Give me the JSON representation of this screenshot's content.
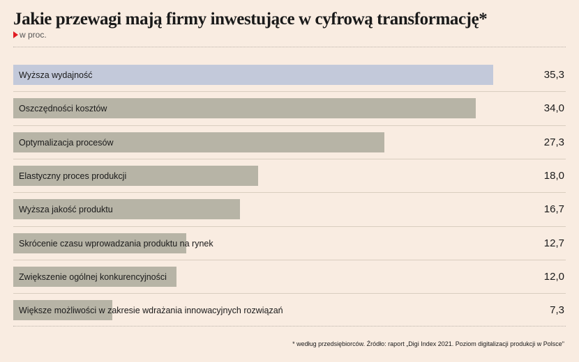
{
  "header": {
    "title": "Jakie przewagi mają firmy inwestujące w cyfrową transformację*",
    "subtitle": "w proc."
  },
  "footnote": "* według przedsiębiorców. Źródło: raport „Digi Index 2021. Poziom digitalizacji produkcji w Polsce\"",
  "colors": {
    "highlight": "#c3c9da",
    "bar": "#b7b4a6",
    "background": "#f9ece1",
    "accent": "#e11b22"
  },
  "chart_data": {
    "type": "bar",
    "orientation": "horizontal",
    "title": "Jakie przewagi mają firmy inwestujące w cyfrową transformację*",
    "subtitle": "w proc.",
    "xlim": [
      0,
      35.3
    ],
    "categories": [
      "Wyższa wydajność",
      "Oszczędności kosztów",
      "Optymalizacja procesów",
      "Elastyczny proces produkcji",
      "Wyższa jakość produktu",
      "Skrócenie czasu wprowadzania produktu na rynek",
      "Zwiększenie ogólnej konkurencyjności",
      "Większe możliwości w zakresie wdrażania innowacyjnych rozwiązań"
    ],
    "values": [
      35.3,
      34.0,
      27.3,
      18.0,
      16.7,
      12.7,
      12.0,
      7.3
    ],
    "value_labels": [
      "35,3",
      "34,0",
      "27,3",
      "18,0",
      "16,7",
      "12,7",
      "12,0",
      "7,3"
    ],
    "highlighted_index": 0
  }
}
